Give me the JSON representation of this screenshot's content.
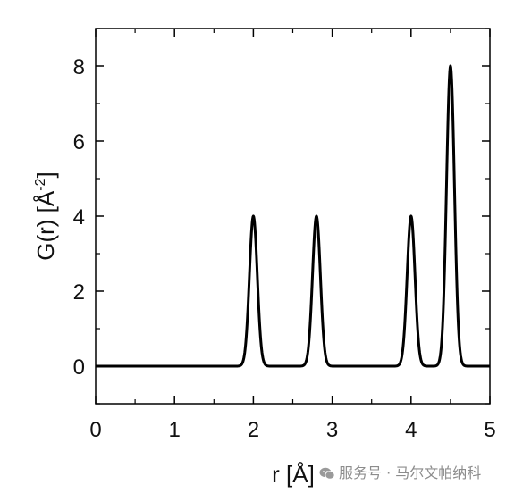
{
  "chart_data": {
    "type": "line",
    "title": "",
    "xlabel": "r [Å]",
    "ylabel_main": "G(r) [Å",
    "ylabel_sup": "-2",
    "ylabel_end": "]",
    "xlim": [
      0,
      5
    ],
    "ylim": [
      -1,
      9
    ],
    "x_ticks": [
      0,
      1,
      2,
      3,
      4,
      5
    ],
    "x_tick_labels": [
      "0",
      "1",
      "2",
      "3",
      "4",
      "5"
    ],
    "y_ticks": [
      0,
      2,
      4,
      6,
      8
    ],
    "y_tick_labels": [
      "0",
      "2",
      "4",
      "6",
      "8"
    ],
    "grid": false,
    "legend": "none",
    "line_color": "#000000",
    "series": [
      {
        "peaks": [
          {
            "center": 2.0,
            "height": 4,
            "width": 0.05
          },
          {
            "center": 2.8,
            "height": 4,
            "width": 0.05
          },
          {
            "center": 4.0,
            "height": 4,
            "width": 0.05
          },
          {
            "center": 4.5,
            "height": 8,
            "width": 0.05
          }
        ]
      }
    ]
  },
  "watermark": {
    "icon": "wechat-icon",
    "text": "服务号 · 马尔文帕纳科"
  }
}
